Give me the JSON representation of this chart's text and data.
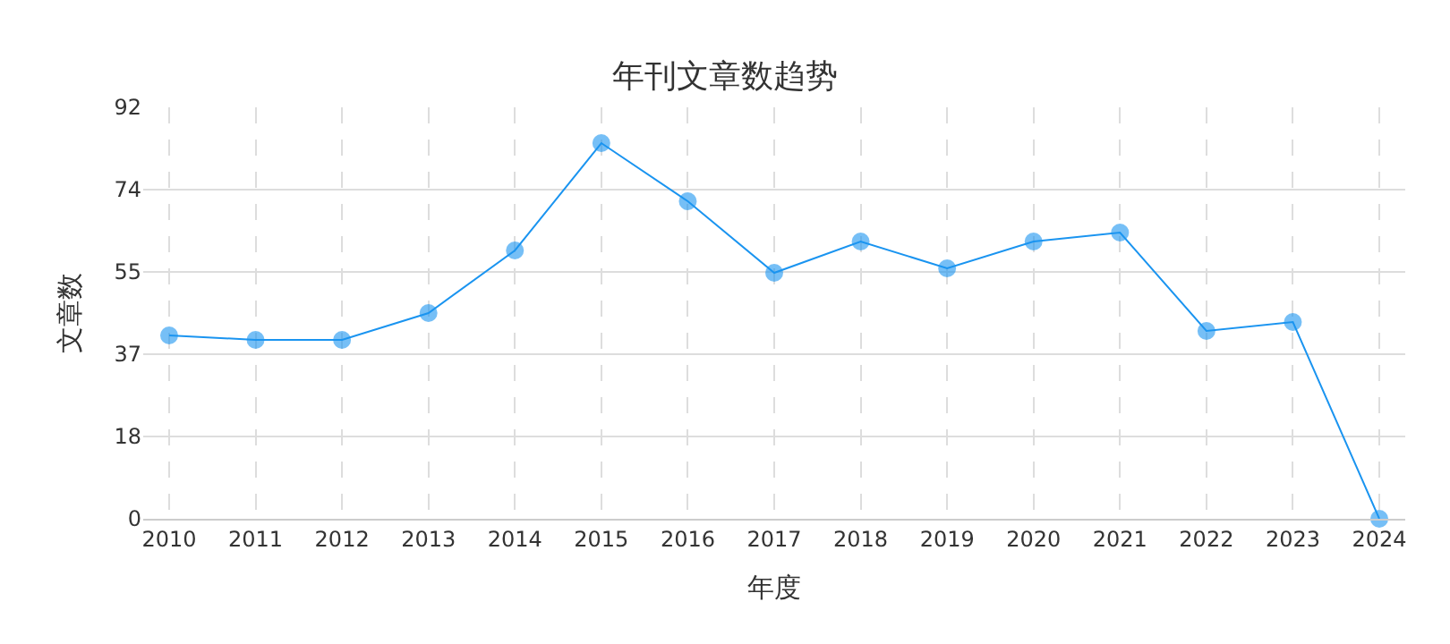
{
  "chart_data": {
    "type": "line",
    "title": "年刊文章数趋势",
    "xlabel": "年度",
    "ylabel": "文章数",
    "categories": [
      "2010",
      "2011",
      "2012",
      "2013",
      "2014",
      "2015",
      "2016",
      "2017",
      "2018",
      "2019",
      "2020",
      "2021",
      "2022",
      "2023",
      "2024"
    ],
    "series": [
      {
        "color": "#1a94f0",
        "values": [
          41,
          40,
          40,
          46,
          60,
          84,
          71,
          55,
          62,
          56,
          62,
          64,
          42,
          44,
          0
        ]
      }
    ],
    "ylim": [
      0,
      92
    ],
    "yticks": [
      0,
      {
        "value": 18.4,
        "label": "18"
      },
      {
        "value": 36.8,
        "label": "37"
      },
      {
        "value": 55.2,
        "label": "55"
      },
      {
        "value": 73.6,
        "label": "74"
      },
      92
    ],
    "grid": true,
    "marker": "circle",
    "line_style": "solid"
  }
}
